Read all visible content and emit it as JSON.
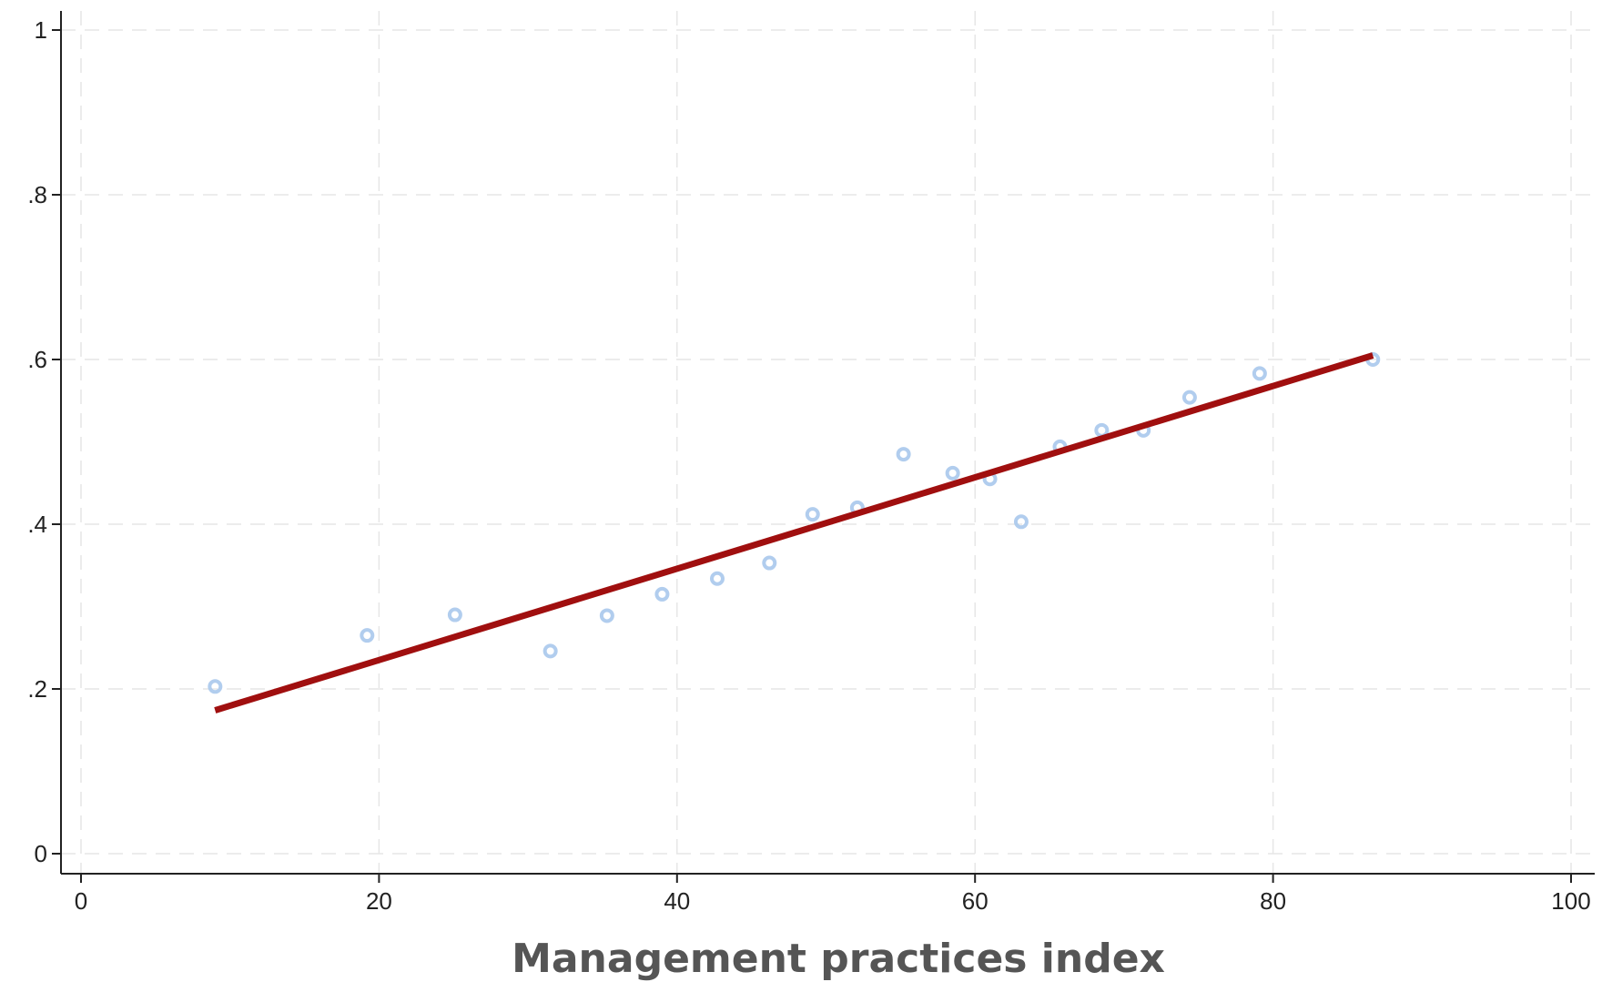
{
  "chart_data": {
    "type": "scatter",
    "title": "",
    "xlabel": "Management practices index",
    "ylabel": "",
    "xlim": [
      0,
      100
    ],
    "ylim": [
      0,
      1
    ],
    "x_ticks": [
      0,
      20,
      40,
      60,
      80,
      100
    ],
    "x_tick_labels": [
      "0",
      "20",
      "40",
      "60",
      "80",
      "100"
    ],
    "y_ticks": [
      0,
      0.2,
      0.4,
      0.6,
      0.8,
      1
    ],
    "y_tick_labels": [
      "0",
      ".2",
      ".4",
      ".6",
      ".8",
      "1"
    ],
    "grid": true,
    "series": [
      {
        "kind": "scatter",
        "color": "#a9c8ec",
        "points": [
          [
            9,
            0.203
          ],
          [
            19.2,
            0.265
          ],
          [
            25.1,
            0.29
          ],
          [
            31.5,
            0.246
          ],
          [
            35.3,
            0.289
          ],
          [
            39,
            0.315
          ],
          [
            42.7,
            0.334
          ],
          [
            46.2,
            0.353
          ],
          [
            49.1,
            0.412
          ],
          [
            52.1,
            0.42
          ],
          [
            55.2,
            0.485
          ],
          [
            58.5,
            0.462
          ],
          [
            61,
            0.455
          ],
          [
            63.1,
            0.403
          ],
          [
            65.7,
            0.494
          ],
          [
            68.5,
            0.514
          ],
          [
            71.3,
            0.514
          ],
          [
            74.4,
            0.554
          ],
          [
            79.1,
            0.583
          ],
          [
            86.7,
            0.6
          ]
        ]
      },
      {
        "kind": "line",
        "color": "#a00f0f",
        "points": [
          [
            9,
            0.174
          ],
          [
            86.7,
            0.605
          ]
        ]
      }
    ]
  }
}
